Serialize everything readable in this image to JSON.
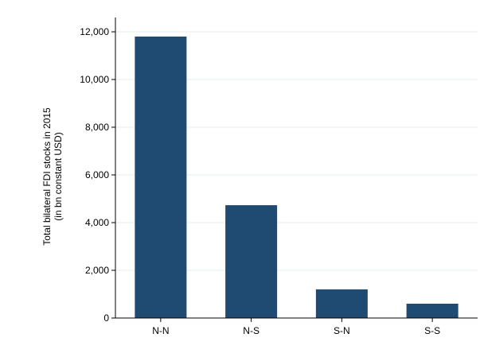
{
  "chart_data": {
    "type": "bar",
    "categories": [
      "N-N",
      "N-S",
      "S-N",
      "S-S"
    ],
    "values": [
      11800,
      4730,
      1200,
      600
    ],
    "title": "",
    "xlabel": "",
    "ylabel_line1": "Total bilateral FDI stocks in 2015",
    "ylabel_line2": "(in bn constant USD)",
    "ylim": [
      0,
      12000
    ],
    "yticks": [
      0,
      2000,
      4000,
      6000,
      8000,
      10000,
      12000
    ],
    "ytick_labels": [
      "0",
      "2,000",
      "4,000",
      "6,000",
      "8,000",
      "10,000",
      "12,000"
    ],
    "grid": true,
    "legend": "none",
    "colors": {
      "bar": "#1f4a72",
      "grid": "#e6ecf2",
      "axis": "#000000"
    }
  }
}
